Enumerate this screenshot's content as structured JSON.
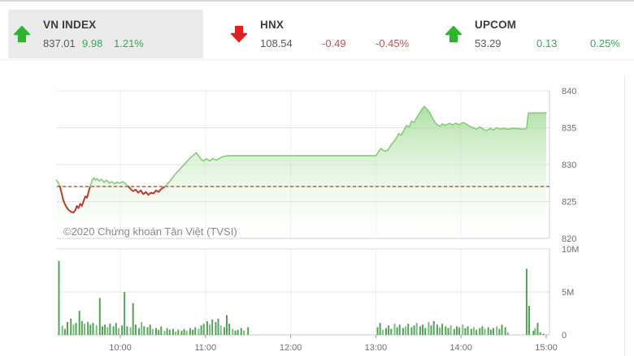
{
  "header": {
    "indices": [
      {
        "id": "vnindex",
        "label": "VN INDEX",
        "value": "837.01",
        "change": "9.98",
        "percent": "1.21%",
        "direction": "up",
        "highlighted": true
      },
      {
        "id": "hnx",
        "label": "HNX",
        "value": "108.54",
        "change": "-0.49",
        "percent": "-0.45%",
        "direction": "down",
        "highlighted": false
      },
      {
        "id": "upcom",
        "label": "UPCOM",
        "value": "53.29",
        "change": "0.13",
        "percent": "0.25%",
        "direction": "up",
        "highlighted": false
      }
    ]
  },
  "colors": {
    "up_green": "#2db52d",
    "up_text": "#2fae53",
    "down_red": "#e01f1f",
    "down_text": "#cc4f4f",
    "line_green": "#85cc79",
    "line_red": "#c03a2e",
    "area_top": "rgba(140,210,126,0.85)",
    "area_bottom": "rgba(240,250,238,0.08)",
    "bar_green": "#54a258",
    "bar_green_light": "#79bd7c",
    "ref_dash": "#96443c",
    "ref_base": "#e8c9a2",
    "grid": "#e3e3e3",
    "axis_text": "#6e6e6e"
  },
  "chart_data": {
    "type": "area+bar",
    "watermark": "©2020 Chứng khoán Tân Việt (TVSI)",
    "x_axis": {
      "unit": "time",
      "session_start": 9.25,
      "session_end": 15.0,
      "ticks": [
        {
          "hour": 10,
          "label": "10:00"
        },
        {
          "hour": 11,
          "label": "11:00"
        },
        {
          "hour": 12,
          "label": "12:00"
        },
        {
          "hour": 13,
          "label": "13:00"
        },
        {
          "hour": 14,
          "label": "14:00"
        },
        {
          "hour": 15,
          "label": "15:00"
        }
      ]
    },
    "price": {
      "type": "area",
      "ylim": [
        820,
        840
      ],
      "yticks": [
        820,
        825,
        830,
        835,
        840
      ],
      "reference": 827.03,
      "close": 837.01,
      "points": [
        [
          9.25,
          827.9
        ],
        [
          9.27,
          827.6
        ],
        [
          9.29,
          827.1
        ],
        [
          9.31,
          826.2
        ],
        [
          9.33,
          825.2
        ],
        [
          9.36,
          824.4
        ],
        [
          9.39,
          823.9
        ],
        [
          9.42,
          823.6
        ],
        [
          9.45,
          823.5
        ],
        [
          9.47,
          823.8
        ],
        [
          9.49,
          824.4
        ],
        [
          9.51,
          824.1
        ],
        [
          9.53,
          824.7
        ],
        [
          9.55,
          824.4
        ],
        [
          9.57,
          825.1
        ],
        [
          9.59,
          825.7
        ],
        [
          9.61,
          825.5
        ],
        [
          9.63,
          826.4
        ],
        [
          9.65,
          827.2
        ],
        [
          9.67,
          827.9
        ],
        [
          9.69,
          828.2
        ],
        [
          9.71,
          827.9
        ],
        [
          9.73,
          828.1
        ],
        [
          9.75,
          827.8
        ],
        [
          9.78,
          828.0
        ],
        [
          9.81,
          827.6
        ],
        [
          9.84,
          827.9
        ],
        [
          9.87,
          827.5
        ],
        [
          9.9,
          827.7
        ],
        [
          9.93,
          827.4
        ],
        [
          9.96,
          827.6
        ],
        [
          10.0,
          827.5
        ],
        [
          10.03,
          827.7
        ],
        [
          10.06,
          827.4
        ],
        [
          10.09,
          827.1
        ],
        [
          10.12,
          826.7
        ],
        [
          10.15,
          826.4
        ],
        [
          10.18,
          826.6
        ],
        [
          10.21,
          826.2
        ],
        [
          10.24,
          826.5
        ],
        [
          10.27,
          826.0
        ],
        [
          10.3,
          826.3
        ],
        [
          10.33,
          825.9
        ],
        [
          10.36,
          826.2
        ],
        [
          10.39,
          826.1
        ],
        [
          10.42,
          826.5
        ],
        [
          10.45,
          826.3
        ],
        [
          10.48,
          826.7
        ],
        [
          10.51,
          826.9
        ],
        [
          10.54,
          827.2
        ],
        [
          10.57,
          827.6
        ],
        [
          10.6,
          828.0
        ],
        [
          10.63,
          828.5
        ],
        [
          10.66,
          828.9
        ],
        [
          10.7,
          829.4
        ],
        [
          10.74,
          829.9
        ],
        [
          10.78,
          830.4
        ],
        [
          10.82,
          830.9
        ],
        [
          10.86,
          831.3
        ],
        [
          10.89,
          831.6
        ],
        [
          10.92,
          831.2
        ],
        [
          10.95,
          830.7
        ],
        [
          10.98,
          830.5
        ],
        [
          11.01,
          830.8
        ],
        [
          11.05,
          830.5
        ],
        [
          11.09,
          830.8
        ],
        [
          11.13,
          830.6
        ],
        [
          11.17,
          830.9
        ],
        [
          11.21,
          831.1
        ],
        [
          11.26,
          831.2
        ],
        [
          11.5,
          831.2
        ],
        [
          12.0,
          831.2
        ],
        [
          12.5,
          831.2
        ],
        [
          13.0,
          831.2
        ],
        [
          13.03,
          831.7
        ],
        [
          13.06,
          832.2
        ],
        [
          13.09,
          831.9
        ],
        [
          13.12,
          831.8
        ],
        [
          13.15,
          832.1
        ],
        [
          13.18,
          832.7
        ],
        [
          13.21,
          833.1
        ],
        [
          13.24,
          833.6
        ],
        [
          13.27,
          834.2
        ],
        [
          13.3,
          834.0
        ],
        [
          13.33,
          834.7
        ],
        [
          13.36,
          835.3
        ],
        [
          13.39,
          835.1
        ],
        [
          13.42,
          835.9
        ],
        [
          13.45,
          835.7
        ],
        [
          13.48,
          836.4
        ],
        [
          13.51,
          836.9
        ],
        [
          13.54,
          837.5
        ],
        [
          13.57,
          837.9
        ],
        [
          13.6,
          837.5
        ],
        [
          13.63,
          837.1
        ],
        [
          13.66,
          836.4
        ],
        [
          13.69,
          835.8
        ],
        [
          13.72,
          835.4
        ],
        [
          13.75,
          835.2
        ],
        [
          13.78,
          835.5
        ],
        [
          13.82,
          835.3
        ],
        [
          13.86,
          835.6
        ],
        [
          13.9,
          835.4
        ],
        [
          13.94,
          835.6
        ],
        [
          13.98,
          835.4
        ],
        [
          14.02,
          835.7
        ],
        [
          14.06,
          835.5
        ],
        [
          14.1,
          835.2
        ],
        [
          14.14,
          835.0
        ],
        [
          14.18,
          834.8
        ],
        [
          14.22,
          835.1
        ],
        [
          14.26,
          834.8
        ],
        [
          14.3,
          834.6
        ],
        [
          14.34,
          834.9
        ],
        [
          14.38,
          834.7
        ],
        [
          14.42,
          835.0
        ],
        [
          14.46,
          834.8
        ],
        [
          14.5,
          834.9
        ],
        [
          14.55,
          834.8
        ],
        [
          14.6,
          834.9
        ],
        [
          14.66,
          834.9
        ],
        [
          14.72,
          834.8
        ],
        [
          14.77,
          834.9
        ],
        [
          14.79,
          837.0
        ],
        [
          14.85,
          837.0
        ],
        [
          14.92,
          837.0
        ],
        [
          15.0,
          837.01
        ]
      ]
    },
    "volume": {
      "type": "bar",
      "unit": "shares",
      "ylim_millions": [
        0,
        10
      ],
      "yticks": [
        {
          "value": 0,
          "label": "0"
        },
        {
          "value": 5,
          "label": "5M"
        },
        {
          "value": 10,
          "label": "10M"
        }
      ],
      "bars": [
        [
          9.28,
          8.6
        ],
        [
          9.32,
          1.1
        ],
        [
          9.35,
          0.7
        ],
        [
          9.38,
          1.5
        ],
        [
          9.42,
          1.9
        ],
        [
          9.45,
          1.2
        ],
        [
          9.48,
          1.4
        ],
        [
          9.52,
          2.8
        ],
        [
          9.55,
          1.6
        ],
        [
          9.58,
          1.3
        ],
        [
          9.62,
          1.5
        ],
        [
          9.65,
          1.2
        ],
        [
          9.68,
          1.4
        ],
        [
          9.72,
          1.1
        ],
        [
          9.76,
          4.3
        ],
        [
          9.79,
          1.0
        ],
        [
          9.82,
          1.2
        ],
        [
          9.85,
          0.9
        ],
        [
          9.88,
          1.3
        ],
        [
          9.92,
          1.0
        ],
        [
          9.95,
          1.4
        ],
        [
          9.98,
          0.8
        ],
        [
          10.02,
          1.1
        ],
        [
          10.05,
          5.0
        ],
        [
          10.08,
          1.0
        ],
        [
          10.12,
          0.9
        ],
        [
          10.15,
          3.7
        ],
        [
          10.18,
          1.2
        ],
        [
          10.22,
          0.8
        ],
        [
          10.25,
          1.5
        ],
        [
          10.28,
          1.0
        ],
        [
          10.32,
          0.9
        ],
        [
          10.35,
          1.2
        ],
        [
          10.38,
          0.7
        ],
        [
          10.42,
          0.8
        ],
        [
          10.45,
          0.6
        ],
        [
          10.48,
          1.0
        ],
        [
          10.52,
          0.5
        ],
        [
          10.55,
          0.8
        ],
        [
          10.58,
          0.6
        ],
        [
          10.62,
          0.7
        ],
        [
          10.65,
          0.4
        ],
        [
          10.68,
          0.6
        ],
        [
          10.72,
          0.5
        ],
        [
          10.75,
          0.7
        ],
        [
          10.78,
          0.5
        ],
        [
          10.82,
          0.8
        ],
        [
          10.85,
          0.6
        ],
        [
          10.88,
          0.9
        ],
        [
          10.92,
          0.7
        ],
        [
          10.95,
          1.1
        ],
        [
          10.98,
          1.3
        ],
        [
          11.02,
          1.6
        ],
        [
          11.05,
          1.2
        ],
        [
          11.08,
          1.8
        ],
        [
          11.12,
          1.5
        ],
        [
          11.15,
          1.9
        ],
        [
          11.18,
          1.1
        ],
        [
          11.22,
          0.9
        ],
        [
          11.25,
          2.3
        ],
        [
          11.28,
          1.3
        ],
        [
          11.32,
          0.7
        ],
        [
          11.35,
          0.5
        ],
        [
          11.38,
          0.6
        ],
        [
          11.42,
          0.8
        ],
        [
          11.45,
          0.5
        ],
        [
          11.5,
          0.9
        ],
        [
          13.02,
          0.9
        ],
        [
          13.05,
          1.4
        ],
        [
          13.08,
          0.6
        ],
        [
          13.12,
          0.8
        ],
        [
          13.15,
          1.1
        ],
        [
          13.18,
          0.7
        ],
        [
          13.22,
          1.3
        ],
        [
          13.25,
          0.9
        ],
        [
          13.28,
          1.2
        ],
        [
          13.32,
          0.8
        ],
        [
          13.35,
          1.0
        ],
        [
          13.38,
          1.3
        ],
        [
          13.42,
          0.9
        ],
        [
          13.45,
          1.1
        ],
        [
          13.48,
          1.4
        ],
        [
          13.52,
          1.0
        ],
        [
          13.55,
          1.2
        ],
        [
          13.58,
          0.8
        ],
        [
          13.62,
          1.5
        ],
        [
          13.65,
          1.1
        ],
        [
          13.68,
          1.6
        ],
        [
          13.72,
          1.2
        ],
        [
          13.75,
          0.9
        ],
        [
          13.78,
          1.3
        ],
        [
          13.82,
          1.0
        ],
        [
          13.85,
          0.8
        ],
        [
          13.88,
          1.1
        ],
        [
          13.92,
          0.7
        ],
        [
          13.95,
          1.0
        ],
        [
          13.98,
          0.9
        ],
        [
          14.02,
          1.2
        ],
        [
          14.05,
          0.8
        ],
        [
          14.08,
          1.0
        ],
        [
          14.12,
          0.7
        ],
        [
          14.15,
          0.9
        ],
        [
          14.18,
          0.6
        ],
        [
          14.22,
          0.8
        ],
        [
          14.25,
          1.0
        ],
        [
          14.28,
          0.7
        ],
        [
          14.32,
          0.9
        ],
        [
          14.35,
          0.6
        ],
        [
          14.38,
          0.8
        ],
        [
          14.42,
          1.0
        ],
        [
          14.45,
          0.7
        ],
        [
          14.48,
          1.2
        ],
        [
          14.52,
          0.9
        ],
        [
          14.55,
          0.3
        ],
        [
          14.77,
          7.7
        ],
        [
          14.8,
          3.4
        ],
        [
          14.85,
          0.5
        ],
        [
          14.87,
          0.8
        ],
        [
          14.9,
          1.4
        ],
        [
          14.93,
          0.3
        ],
        [
          14.97,
          0.12
        ]
      ]
    }
  }
}
